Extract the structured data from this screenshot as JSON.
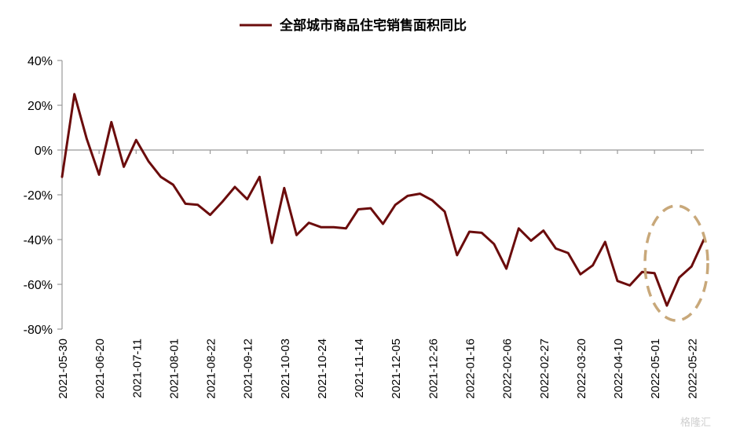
{
  "chart_data": {
    "type": "line",
    "title": "",
    "xlabel": "",
    "ylabel": "",
    "ylim": [
      -80,
      40
    ],
    "yticks": [
      40,
      20,
      0,
      -20,
      -40,
      -60,
      -80
    ],
    "ytick_labels": [
      "40%",
      "20%",
      "0%",
      "-20%",
      "-40%",
      "-60%",
      "-80%"
    ],
    "xtick_labels": [
      "2021-05-30",
      "2021-06-20",
      "2021-07-11",
      "2021-08-01",
      "2021-08-22",
      "2021-09-12",
      "2021-10-03",
      "2021-10-24",
      "2021-11-14",
      "2021-12-05",
      "2021-12-26",
      "2022-01-16",
      "2022-02-06",
      "2022-02-27",
      "2022-03-20",
      "2022-04-10",
      "2022-05-01",
      "2022-05-22"
    ],
    "legend_position": "top-center",
    "line_color": "#6b0c0c",
    "highlight_color": "#c8a87a",
    "series": [
      {
        "name": "全部城市商品住宅销售面积同比",
        "x": [
          "2021-05-30",
          "2021-06-06",
          "2021-06-13",
          "2021-06-20",
          "2021-06-27",
          "2021-07-04",
          "2021-07-11",
          "2021-07-18",
          "2021-07-25",
          "2021-08-01",
          "2021-08-08",
          "2021-08-15",
          "2021-08-22",
          "2021-08-29",
          "2021-09-05",
          "2021-09-12",
          "2021-09-19",
          "2021-09-26",
          "2021-10-03",
          "2021-10-10",
          "2021-10-17",
          "2021-10-24",
          "2021-10-31",
          "2021-11-07",
          "2021-11-14",
          "2021-11-21",
          "2021-11-28",
          "2021-12-05",
          "2021-12-12",
          "2021-12-19",
          "2021-12-26",
          "2022-01-02",
          "2022-01-09",
          "2022-01-16",
          "2022-01-23",
          "2022-01-30",
          "2022-02-06",
          "2022-02-13",
          "2022-02-20",
          "2022-02-27",
          "2022-03-06",
          "2022-03-13",
          "2022-03-20",
          "2022-03-27",
          "2022-04-03",
          "2022-04-10",
          "2022-04-17",
          "2022-04-24",
          "2022-05-01",
          "2022-05-08",
          "2022-05-15",
          "2022-05-22",
          "2022-05-29"
        ],
        "values": [
          -12,
          25,
          5,
          -11,
          12.5,
          -7.5,
          4.5,
          -5,
          -12,
          -15.5,
          -24,
          -24.5,
          -29,
          -23,
          -16.5,
          -22,
          -12,
          -41.5,
          -17,
          -38,
          -32.5,
          -34.5,
          -34.5,
          -35,
          -26.5,
          -26,
          -33,
          -24.5,
          -20.5,
          -19.5,
          -22.5,
          -27.5,
          -47,
          -36.5,
          -37,
          -42,
          -53,
          -35,
          -40.5,
          -36,
          -44,
          -46,
          -55.5,
          -51.5,
          -41,
          -58.5,
          -60.5,
          -54.5,
          -55,
          -69.5,
          -57,
          -52,
          -40
        ]
      }
    ],
    "watermark": "格隆汇"
  }
}
